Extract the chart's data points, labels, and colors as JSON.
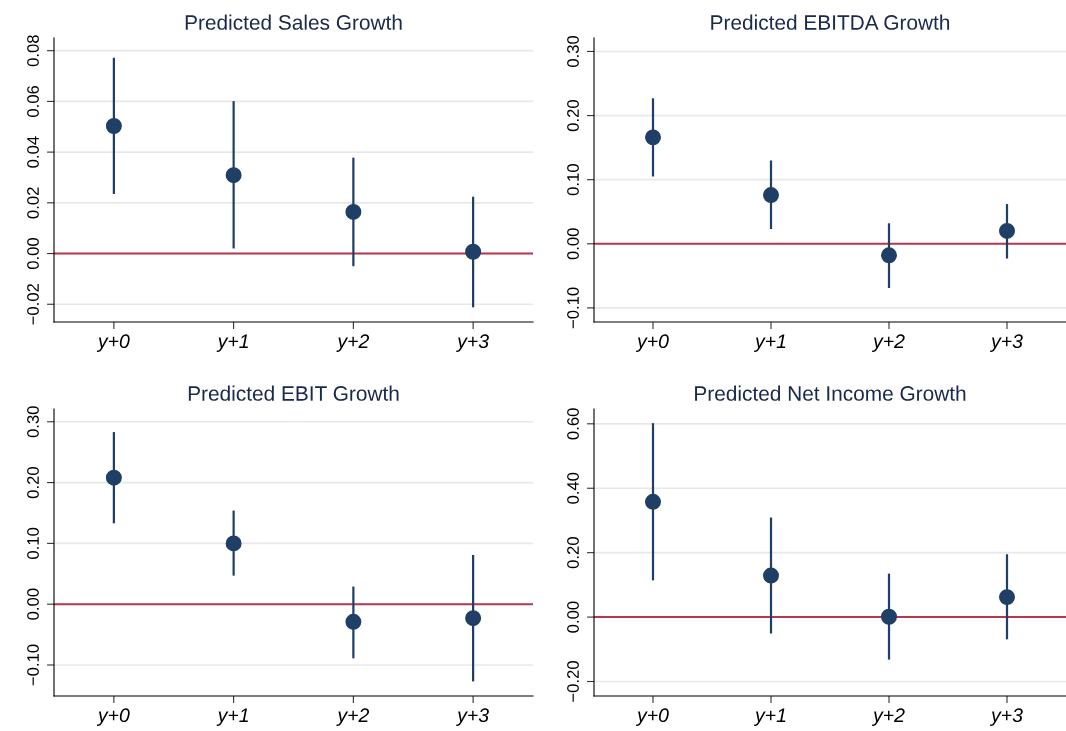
{
  "chart_data": [
    {
      "type": "scatter",
      "title": "Predicted Sales Growth",
      "categories": [
        "y+0",
        "y+1",
        "y+2",
        "y+3"
      ],
      "marker": "circle",
      "grid": "y",
      "ylim": [
        -0.027,
        0.085
      ],
      "yticks": [
        {
          "value": -0.02,
          "label": "−0.02"
        },
        {
          "value": 0,
          "label": "0.00"
        },
        {
          "value": 0.02,
          "label": "0.02"
        },
        {
          "value": 0.04,
          "label": "0.04"
        },
        {
          "value": 0.06,
          "label": "0.06"
        },
        {
          "value": 0.08,
          "label": "0.08"
        }
      ],
      "series": [
        {
          "color": "#1f3f66",
          "values": [
            0.0503,
            0.0309,
            0.0164,
            0.0007
          ],
          "errors": [
            [
              0.0235,
              0.0772
            ],
            [
              0.002,
              0.0601
            ],
            [
              -0.005,
              0.0378
            ],
            [
              -0.0212,
              0.0224
            ]
          ]
        }
      ],
      "ref_lines": [
        {
          "axis": "y",
          "value": 0,
          "color": "#b5384f"
        }
      ]
    },
    {
      "type": "scatter",
      "title": "Predicted EBITDA Growth",
      "categories": [
        "y+0",
        "y+1",
        "y+2",
        "y+3"
      ],
      "marker": "circle",
      "grid": "y",
      "ylim": [
        -0.122,
        0.321
      ],
      "yticks": [
        {
          "value": -0.1,
          "label": "−0.10"
        },
        {
          "value": 0,
          "label": "0.00"
        },
        {
          "value": 0.1,
          "label": "0.10"
        },
        {
          "value": 0.2,
          "label": "0.20"
        },
        {
          "value": 0.3,
          "label": "0.30"
        }
      ],
      "series": [
        {
          "color": "#1f3f66",
          "values": [
            0.166,
            0.076,
            -0.018,
            0.02
          ],
          "errors": [
            [
              0.105,
              0.227
            ],
            [
              0.023,
              0.13
            ],
            [
              -0.069,
              0.032
            ],
            [
              -0.023,
              0.062
            ]
          ]
        }
      ],
      "ref_lines": [
        {
          "axis": "y",
          "value": 0,
          "color": "#b5384f"
        }
      ]
    },
    {
      "type": "scatter",
      "title": "Predicted EBIT Growth",
      "categories": [
        "y+0",
        "y+1",
        "y+2",
        "y+3"
      ],
      "marker": "circle",
      "grid": "y",
      "ylim": [
        -0.151,
        0.321
      ],
      "yticks": [
        {
          "value": -0.1,
          "label": "−0.10"
        },
        {
          "value": 0,
          "label": "0.00"
        },
        {
          "value": 0.1,
          "label": "0.10"
        },
        {
          "value": 0.2,
          "label": "0.20"
        },
        {
          "value": 0.3,
          "label": "0.30"
        }
      ],
      "series": [
        {
          "color": "#1f3f66",
          "values": [
            0.208,
            0.1,
            -0.029,
            -0.023
          ],
          "errors": [
            [
              0.133,
              0.283
            ],
            [
              0.047,
              0.154
            ],
            [
              -0.089,
              0.029
            ],
            [
              -0.127,
              0.081
            ]
          ]
        }
      ],
      "ref_lines": [
        {
          "axis": "y",
          "value": 0,
          "color": "#b5384f"
        }
      ]
    },
    {
      "type": "scatter",
      "title": "Predicted Net Income Growth",
      "categories": [
        "y+0",
        "y+1",
        "y+2",
        "y+3"
      ],
      "marker": "circle",
      "grid": "y",
      "ylim": [
        -0.245,
        0.646
      ],
      "yticks": [
        {
          "value": -0.2,
          "label": "−0.20"
        },
        {
          "value": 0,
          "label": "0.00"
        },
        {
          "value": 0.2,
          "label": "0.20"
        },
        {
          "value": 0.4,
          "label": "0.40"
        },
        {
          "value": 0.6,
          "label": "0.60"
        }
      ],
      "series": [
        {
          "color": "#1f3f66",
          "values": [
            0.358,
            0.129,
            0.001,
            0.062
          ],
          "errors": [
            [
              0.114,
              0.602
            ],
            [
              -0.051,
              0.309
            ],
            [
              -0.132,
              0.135
            ],
            [
              -0.069,
              0.195
            ]
          ]
        }
      ],
      "ref_lines": [
        {
          "axis": "y",
          "value": 0,
          "color": "#b5384f"
        }
      ]
    }
  ]
}
